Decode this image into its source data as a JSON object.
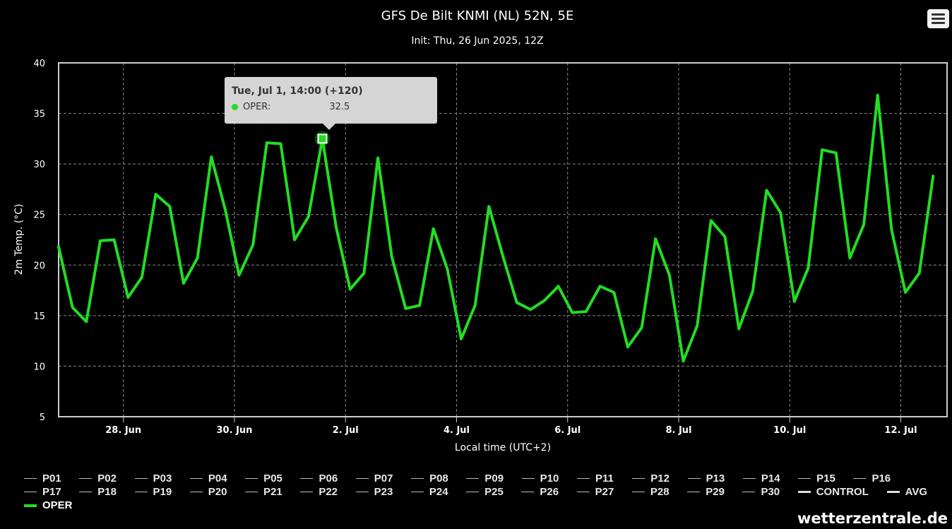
{
  "title": "GFS De Bilt KNMI (NL) 52N, 5E",
  "subtitle": "Init: Thu, 26 Jun 2025, 12Z",
  "watermark": "wetterzentrale.de",
  "tooltip": {
    "title": "Tue, Jul 1, 14:00 (+120)",
    "series": "OPER:",
    "value": "32.5"
  },
  "legend_rows": [
    [
      "P01",
      "P02",
      "P03",
      "P04",
      "P05",
      "P06",
      "P07",
      "P08",
      "P09",
      "P10",
      "P11",
      "P12",
      "P13",
      "P14",
      "P15",
      "P16"
    ],
    [
      "P17",
      "P18",
      "P19",
      "P20",
      "P21",
      "P22",
      "P23",
      "P24",
      "P25",
      "P26",
      "P27",
      "P28",
      "P29",
      "P30",
      "CONTROL",
      "AVG"
    ],
    [
      "OPER"
    ]
  ],
  "colors": {
    "oper": "#22dd22",
    "background": "#000000",
    "grid": "#888888",
    "highlight_marker": "#ffffff"
  },
  "chart_data": {
    "type": "line",
    "ylabel": "2m Temp. (°C)",
    "xlabel": "Local time (UTC+2)",
    "ylim": [
      5,
      40
    ],
    "yticks": [
      5,
      10,
      15,
      20,
      25,
      30,
      35,
      40
    ],
    "xlim": [
      "2025-06-26T20:00",
      "2025-07-12T20:00"
    ],
    "xtick_labels": [
      "28. Jun",
      "30. Jun",
      "2. Jul",
      "4. Jul",
      "6. Jul",
      "8. Jul",
      "10. Jul",
      "12. Jul"
    ],
    "xtick_dates": [
      "2025-06-28T00:00",
      "2025-06-30T00:00",
      "2025-07-02T00:00",
      "2025-07-04T00:00",
      "2025-07-06T00:00",
      "2025-07-08T00:00",
      "2025-07-10T00:00",
      "2025-07-12T00:00"
    ],
    "grid": true,
    "legend_position": "bottom",
    "highlighted_point": {
      "time": "2025-07-01T14:00",
      "value": 32.5
    },
    "series": [
      {
        "name": "OPER",
        "times": [
          "2025-06-26T20:00",
          "2025-06-27T02:00",
          "2025-06-27T08:00",
          "2025-06-27T14:00",
          "2025-06-27T20:00",
          "2025-06-28T02:00",
          "2025-06-28T08:00",
          "2025-06-28T14:00",
          "2025-06-28T20:00",
          "2025-06-29T02:00",
          "2025-06-29T08:00",
          "2025-06-29T14:00",
          "2025-06-29T20:00",
          "2025-06-30T02:00",
          "2025-06-30T08:00",
          "2025-06-30T14:00",
          "2025-06-30T20:00",
          "2025-07-01T02:00",
          "2025-07-01T08:00",
          "2025-07-01T14:00",
          "2025-07-01T20:00",
          "2025-07-02T02:00",
          "2025-07-02T08:00",
          "2025-07-02T14:00",
          "2025-07-02T20:00",
          "2025-07-03T02:00",
          "2025-07-03T08:00",
          "2025-07-03T14:00",
          "2025-07-03T20:00",
          "2025-07-04T02:00",
          "2025-07-04T08:00",
          "2025-07-04T14:00",
          "2025-07-04T20:00",
          "2025-07-05T02:00",
          "2025-07-05T08:00",
          "2025-07-05T14:00",
          "2025-07-05T20:00",
          "2025-07-06T02:00",
          "2025-07-06T08:00",
          "2025-07-06T14:00",
          "2025-07-06T20:00",
          "2025-07-07T02:00",
          "2025-07-07T08:00",
          "2025-07-07T14:00",
          "2025-07-07T20:00",
          "2025-07-08T02:00",
          "2025-07-08T08:00",
          "2025-07-08T14:00",
          "2025-07-08T20:00",
          "2025-07-09T02:00",
          "2025-07-09T08:00",
          "2025-07-09T14:00",
          "2025-07-09T20:00",
          "2025-07-10T02:00",
          "2025-07-10T08:00",
          "2025-07-10T14:00",
          "2025-07-10T20:00",
          "2025-07-11T02:00",
          "2025-07-11T08:00",
          "2025-07-11T14:00",
          "2025-07-11T20:00",
          "2025-07-12T02:00",
          "2025-07-12T08:00",
          "2025-07-12T14:00"
        ],
        "values": [
          21.8,
          15.8,
          14.4,
          22.4,
          22.5,
          16.8,
          18.8,
          27.0,
          25.8,
          18.2,
          20.7,
          30.7,
          25.5,
          19.0,
          22.0,
          32.1,
          32.0,
          22.5,
          24.8,
          32.5,
          23.7,
          17.6,
          19.2,
          30.6,
          20.8,
          15.7,
          16.0,
          23.6,
          19.6,
          12.7,
          16.0,
          25.8,
          20.9,
          16.3,
          15.6,
          16.5,
          17.9,
          15.3,
          15.4,
          17.9,
          17.3,
          11.9,
          13.8,
          22.6,
          19.0,
          10.5,
          14.0,
          24.4,
          22.8,
          13.7,
          17.4,
          27.4,
          25.2,
          16.4,
          19.7,
          31.4,
          31.1,
          20.7,
          24.0,
          36.8,
          23.5,
          17.3,
          19.2,
          28.8
        ]
      }
    ]
  }
}
